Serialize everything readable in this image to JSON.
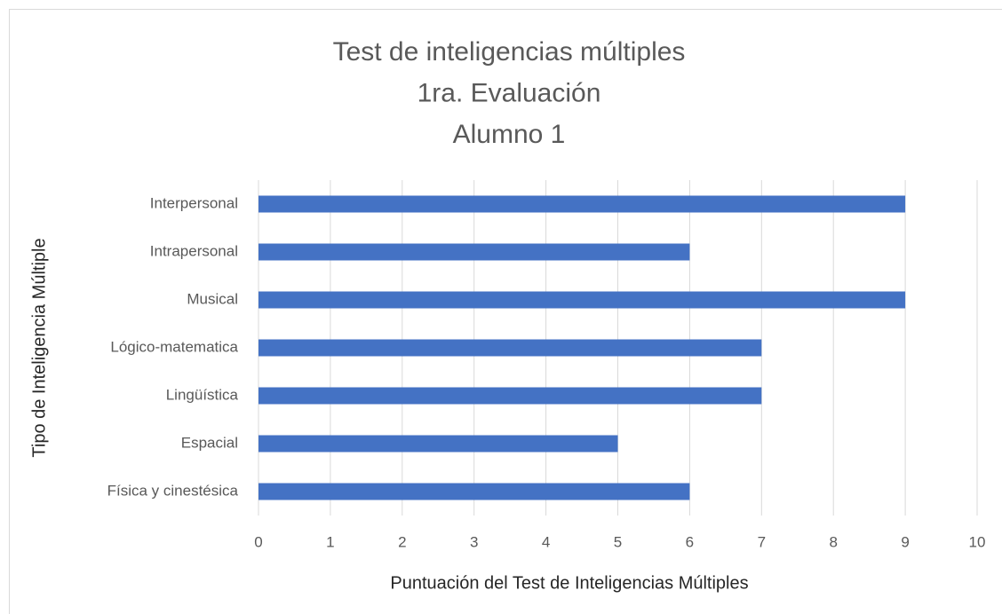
{
  "chart_data": {
    "type": "barh",
    "title": [
      "Test de inteligencias múltiples",
      "1ra. Evaluación",
      "Alumno 1"
    ],
    "xlabel": "Puntuación del Test de Inteligencias Múltiples",
    "ylabel": "Tipo  de Inteligencia Múltiple",
    "categories": [
      "Física y cinestésica",
      "Espacial",
      "Lingüística",
      "Lógico-matematica",
      "Musical",
      "Intrapersonal",
      "Interpersonal"
    ],
    "values": [
      6,
      5,
      7,
      7,
      9,
      6,
      9
    ],
    "color": "#4472c4",
    "xlim": [
      0,
      10
    ],
    "xticks": [
      0,
      1,
      2,
      3,
      4,
      5,
      6,
      7,
      8,
      9,
      10
    ],
    "grid": true
  }
}
